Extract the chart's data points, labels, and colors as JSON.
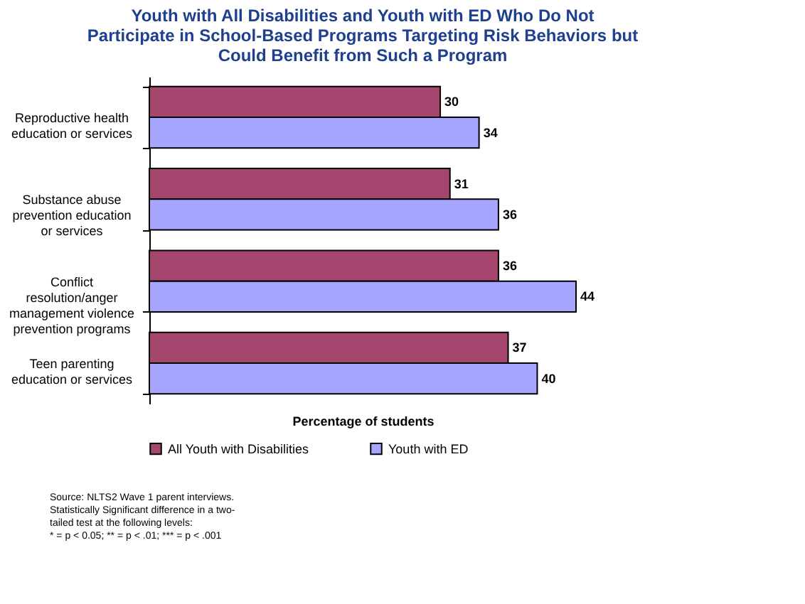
{
  "chart_data": {
    "type": "bar",
    "orientation": "horizontal",
    "title": "Youth with All Disabilities and Youth with ED Who Do Not Participate in School-Based Programs Targeting Risk Behaviors but Could Benefit from Such a Program",
    "xlabel": "Percentage of students",
    "categories": [
      "Reproductive health education or services",
      "Substance abuse prevention education or services",
      "Conflict resolution/anger management violence prevention programs",
      "Teen parenting education or services"
    ],
    "series": [
      {
        "name": "All Youth with Disabilities",
        "color": "#a5466f",
        "values": [
          30,
          31,
          36,
          37
        ]
      },
      {
        "name": "Youth with ED",
        "color": "#a6a6ff",
        "values": [
          34,
          36,
          44,
          40
        ]
      }
    ],
    "tick_labels": "y",
    "data_labels": true,
    "legend": "bottom",
    "grid": false,
    "annotations": [
      "Source: NLTS2 Wave 1 parent interviews.",
      "Statistically Significant difference in a two-tailed test at the following levels:",
      "* = p < 0.05;  ** = p < .01; *** = p < .001"
    ]
  }
}
